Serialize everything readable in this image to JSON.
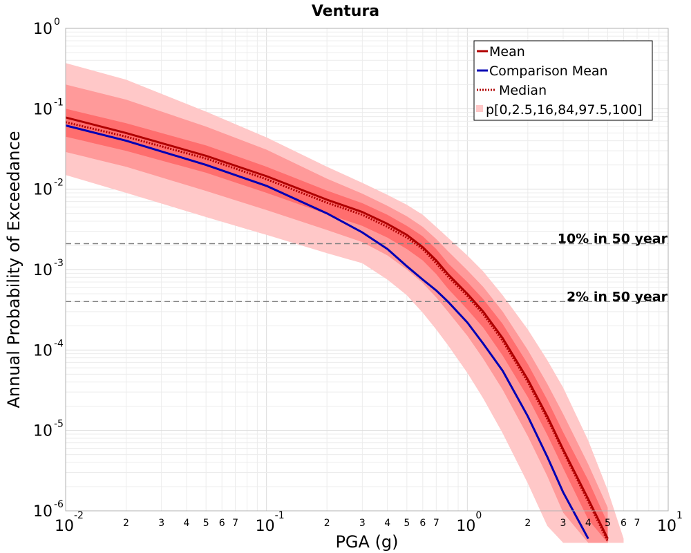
{
  "chart_data": {
    "type": "line",
    "title": "Ventura",
    "xlabel": "PGA (g)",
    "ylabel": "Annual Probability of Exceedance",
    "x_scale": "log",
    "y_scale": "log",
    "xlim": [
      0.01,
      10
    ],
    "ylim": [
      1e-06,
      1
    ],
    "grid": true,
    "legend_position": "top-right",
    "x_major_ticks": [
      {
        "base": "10",
        "exp": "-2"
      },
      {
        "base": "10",
        "exp": "-1"
      },
      {
        "base": "10",
        "exp": "0"
      },
      {
        "base": "10",
        "exp": "1"
      }
    ],
    "y_major_ticks": [
      {
        "base": "10",
        "exp": "0"
      },
      {
        "base": "10",
        "exp": "-1"
      },
      {
        "base": "10",
        "exp": "-2"
      },
      {
        "base": "10",
        "exp": "-3"
      },
      {
        "base": "10",
        "exp": "-4"
      },
      {
        "base": "10",
        "exp": "-5"
      },
      {
        "base": "10",
        "exp": "-6"
      }
    ],
    "x_minor_tick_labels": [
      "2",
      "3",
      "4",
      "5",
      "6",
      "7"
    ],
    "colors": {
      "mean": "#b00000",
      "comparison_mean": "#0000b4",
      "median": "#b00000",
      "band_outer": "#ffc8c8",
      "band_mid": "#ff9a9a",
      "band_inner": "#ff6e6e",
      "reference_line": "#808080"
    },
    "reference_lines": [
      {
        "label": "10% in 50 year",
        "y": 0.0021
      },
      {
        "label": "2% in 50 year",
        "y": 0.0004
      }
    ],
    "legend": [
      {
        "label": "Mean",
        "style": "solid",
        "color": "#b00000"
      },
      {
        "label": "Comparison Mean",
        "style": "solid",
        "color": "#0000b4"
      },
      {
        "label": "Median",
        "style": "dotted",
        "color": "#b00000"
      },
      {
        "label": "p[0,2.5,16,84,97.5,100]",
        "style": "patch",
        "color": "#ffc8c8"
      }
    ],
    "x": [
      0.01,
      0.02,
      0.05,
      0.1,
      0.2,
      0.3,
      0.4,
      0.5,
      0.6,
      0.7,
      0.8,
      1.0,
      1.2,
      1.5,
      2.0,
      2.5,
      3.0,
      4.0,
      5.0,
      6.0
    ],
    "series": [
      {
        "name": "Mean",
        "values": [
          0.078,
          0.05,
          0.026,
          0.0145,
          0.0074,
          0.0052,
          0.0037,
          0.0027,
          0.0019,
          0.0013,
          0.00088,
          0.0005,
          0.0003,
          0.00014,
          4.3e-05,
          1.5e-05,
          5.8e-06,
          1.4e-06,
          4.5e-07,
          null
        ]
      },
      {
        "name": "Comparison Mean",
        "values": [
          0.062,
          0.04,
          0.02,
          0.011,
          0.005,
          0.0029,
          0.0018,
          0.0011,
          0.00075,
          0.00055,
          0.0004,
          0.00022,
          0.00012,
          5.5e-05,
          1.5e-05,
          4.7e-06,
          1.7e-06,
          4.5e-07,
          null,
          null
        ]
      },
      {
        "name": "Median",
        "values": [
          0.068,
          0.045,
          0.024,
          0.0133,
          0.0068,
          0.0048,
          0.0034,
          0.0025,
          0.0018,
          0.0012,
          0.00082,
          0.00047,
          0.00028,
          0.00013,
          4e-05,
          1.4e-05,
          5.5e-06,
          1.3e-06,
          4.2e-07,
          null
        ]
      }
    ],
    "bands": [
      {
        "name": "p0-p100",
        "lower": [
          0.015,
          0.009,
          0.0045,
          0.0027,
          0.0016,
          0.0012,
          0.00075,
          0.00048,
          0.00029,
          0.00018,
          0.000115,
          5.2e-05,
          2.5e-05,
          9.2e-06,
          2.2e-06,
          6.5e-07,
          null,
          null,
          null,
          null
        ],
        "upper": [
          0.37,
          0.23,
          0.092,
          0.044,
          0.019,
          0.012,
          0.0085,
          0.0064,
          0.0048,
          0.0034,
          0.0025,
          0.0015,
          0.00095,
          0.00048,
          0.00018,
          7.5e-05,
          3.4e-05,
          7.5e-06,
          1.8e-06,
          4.5e-07
        ]
      },
      {
        "name": "p2.5-p97.5",
        "lower": [
          0.029,
          0.019,
          0.0095,
          0.0055,
          0.0031,
          0.0022,
          0.0015,
          0.001,
          0.00068,
          0.00045,
          0.0003,
          0.00015,
          7.8e-05,
          3.2e-05,
          8.5e-06,
          2.7e-06,
          9.5e-07,
          null,
          null,
          null
        ],
        "upper": [
          0.2,
          0.13,
          0.06,
          0.031,
          0.0135,
          0.0088,
          0.0062,
          0.0046,
          0.0034,
          0.0024,
          0.0017,
          0.00098,
          0.00061,
          0.0003,
          0.0001,
          3.8e-05,
          1.6e-05,
          3.8e-06,
          1.1e-06,
          null
        ]
      },
      {
        "name": "p16-p84",
        "lower": [
          0.045,
          0.03,
          0.016,
          0.009,
          0.0049,
          0.0035,
          0.0025,
          0.0018,
          0.0013,
          0.00088,
          0.00058,
          0.00032,
          0.00019,
          8.5e-05,
          2.6e-05,
          8.8e-06,
          3.4e-06,
          7.8e-07,
          null,
          null
        ],
        "upper": [
          0.1,
          0.066,
          0.035,
          0.019,
          0.0096,
          0.0067,
          0.0048,
          0.0035,
          0.0026,
          0.0018,
          0.0012,
          0.0007,
          0.00043,
          0.00021,
          6.7e-05,
          2.4e-05,
          9.5e-06,
          2.4e-06,
          7e-07,
          null
        ]
      }
    ]
  }
}
